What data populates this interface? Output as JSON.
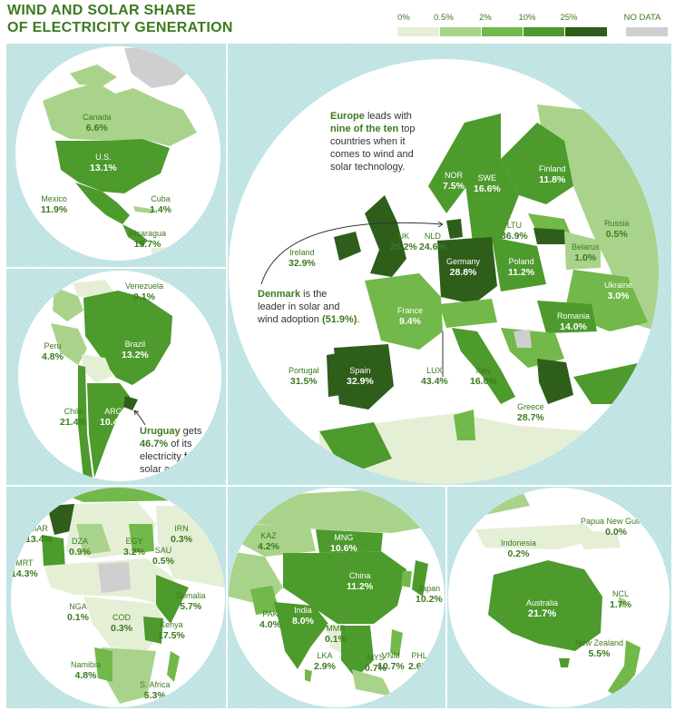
{
  "title": {
    "line1": "WIND AND SOLAR SHARE",
    "line2": "OF ELECTRICITY GENERATION"
  },
  "legend": {
    "ticks": [
      "0%",
      "0.5%",
      "2%",
      "10%",
      "25%"
    ],
    "no_data": "NO DATA",
    "colors": [
      "#e4efd6",
      "#a9d38b",
      "#72b84a",
      "#4d9a2d",
      "#2f5e1b"
    ],
    "no_data_color": "#cfcfcf"
  },
  "colors": {
    "ocean": "#bfe3e3",
    "accent": "#3d7a1f",
    "land_unknown": "#f3f1e6"
  },
  "panels": {
    "north_america": {
      "labels": [
        {
          "name": "Canada",
          "value": "6.6%"
        },
        {
          "name": "U.S.",
          "value": "13.1%"
        },
        {
          "name": "Mexico",
          "value": "11.9%"
        },
        {
          "name": "Cuba",
          "value": "1.4%"
        },
        {
          "name": "Nicaragua",
          "value": "15.7%"
        }
      ]
    },
    "south_america": {
      "labels": [
        {
          "name": "Venezuela",
          "value": "0.1%"
        },
        {
          "name": "Peru",
          "value": "4.8%"
        },
        {
          "name": "Brazil",
          "value": "13.2%"
        },
        {
          "name": "Chile",
          "value": "21.4%"
        },
        {
          "name": "ARG",
          "value": "10.4%"
        }
      ],
      "note": {
        "bold": "Uruguay",
        "text1": " gets",
        "bold2": "46.7%",
        "text2": " of its",
        "line3": "electricity from",
        "line4": "solar and wind."
      }
    },
    "europe": {
      "labels": [
        {
          "name": "NOR",
          "value": "7.5%"
        },
        {
          "name": "SWE",
          "value": "16.6%"
        },
        {
          "name": "Finland",
          "value": "11.8%"
        },
        {
          "name": "Russia",
          "value": "0.5%"
        },
        {
          "name": "LTU",
          "value": "36.9%"
        },
        {
          "name": "Belarus",
          "value": "1.0%"
        },
        {
          "name": "UK",
          "value": "25.2%"
        },
        {
          "name": "NLD",
          "value": "24.6%"
        },
        {
          "name": "Ireland",
          "value": "32.9%"
        },
        {
          "name": "Germany",
          "value": "28.8%"
        },
        {
          "name": "Poland",
          "value": "11.2%"
        },
        {
          "name": "Ukraine",
          "value": "3.0%"
        },
        {
          "name": "France",
          "value": "9.4%"
        },
        {
          "name": "Romania",
          "value": "14.0%"
        },
        {
          "name": "Portugal",
          "value": "31.5%"
        },
        {
          "name": "Spain",
          "value": "32.9%"
        },
        {
          "name": "LUX",
          "value": "43.4%"
        },
        {
          "name": "Italy",
          "value": "16.0%"
        },
        {
          "name": "Greece",
          "value": "28.7%"
        }
      ],
      "note_europe": {
        "bold1": "Europe",
        "t1": " leads with",
        "bold2": "nine of the ten",
        "t2": " top",
        "l3": "countries when it",
        "l4": "comes to wind and",
        "l5": "solar technology."
      },
      "note_denmark": {
        "bold1": "Denmark",
        "t1": " is the",
        "l2": "leader in solar and",
        "t3": "wind adoption ",
        "bold3": "(51.9%)",
        "t4": "."
      }
    },
    "africa": {
      "labels": [
        {
          "name": "MAR",
          "value": "13.4%"
        },
        {
          "name": "DZA",
          "value": "0.9%"
        },
        {
          "name": "EGY",
          "value": "3.2%"
        },
        {
          "name": "IRN",
          "value": "0.3%"
        },
        {
          "name": "SAU",
          "value": "0.5%"
        },
        {
          "name": "MRT",
          "value": "14.3%"
        },
        {
          "name": "Somalia",
          "value": "5.7%"
        },
        {
          "name": "NGA",
          "value": "0.1%"
        },
        {
          "name": "COD",
          "value": "0.3%"
        },
        {
          "name": "Kenya",
          "value": "17.5%"
        },
        {
          "name": "Namibia",
          "value": "4.8%"
        },
        {
          "name": "S. Africa",
          "value": "5.3%"
        }
      ]
    },
    "asia": {
      "labels": [
        {
          "name": "KAZ",
          "value": "4.2%"
        },
        {
          "name": "MNG",
          "value": "10.6%"
        },
        {
          "name": "China",
          "value": "11.2%"
        },
        {
          "name": "Japan",
          "value": "10.2%"
        },
        {
          "name": "PAK",
          "value": "4.0%"
        },
        {
          "name": "India",
          "value": "8.0%"
        },
        {
          "name": "MMR",
          "value": "0.1%"
        },
        {
          "name": "VNM",
          "value": "10.7%"
        },
        {
          "name": "PHL",
          "value": "2.6%"
        },
        {
          "name": "LKA",
          "value": "2.9%"
        },
        {
          "name": "MYS",
          "value": "0.7%"
        }
      ]
    },
    "oceania": {
      "labels": [
        {
          "name": "Papua New Guinea",
          "value": "0.0%"
        },
        {
          "name": "Indonesia",
          "value": "0.2%"
        },
        {
          "name": "Australia",
          "value": "21.7%"
        },
        {
          "name": "NCL",
          "value": "1.7%"
        },
        {
          "name": "New Zealand",
          "value": "5.5%"
        }
      ]
    }
  }
}
